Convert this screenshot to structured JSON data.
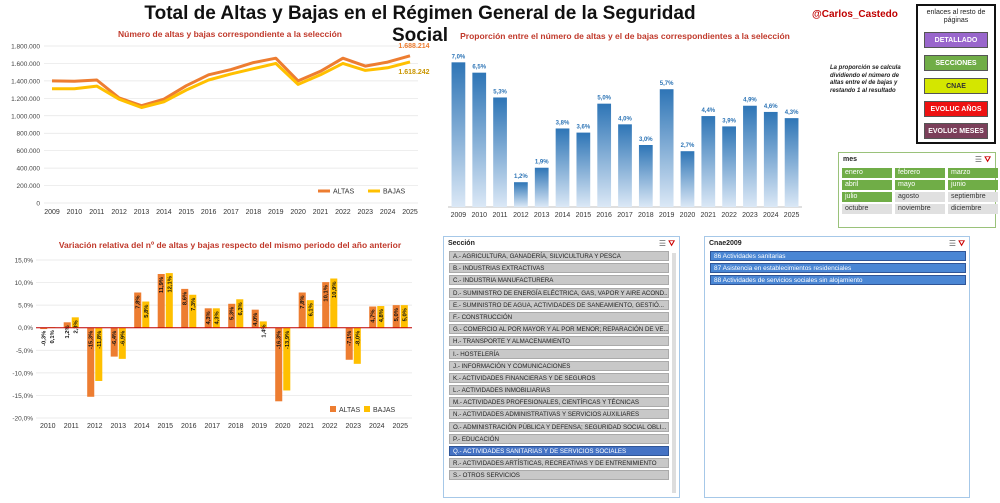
{
  "title": "Total de Altas y Bajas en el Régimen General de la Seguridad Social",
  "handle": "@Carlos_Castedo",
  "links": {
    "header": "enlaces al resto de páginas",
    "buttons": [
      {
        "label": "DETALLADO",
        "color": "#9966cc"
      },
      {
        "label": "SECCIONES",
        "color": "#70ad47"
      },
      {
        "label": "CNAE",
        "color": "#d4e600"
      },
      {
        "label": "EVOLUC AÑOS",
        "color": "#ee1111"
      },
      {
        "label": "EVOLUC MESES",
        "color": "#7b3f5a"
      }
    ]
  },
  "note": "La proporción se calcula dividiendo el número de altas entre el de bajas y restando 1 al resultado",
  "mes_slicer": {
    "header": "mes",
    "months": [
      {
        "label": "enero",
        "selected": true
      },
      {
        "label": "febrero",
        "selected": true
      },
      {
        "label": "marzo",
        "selected": true
      },
      {
        "label": "abril",
        "selected": true
      },
      {
        "label": "mayo",
        "selected": true
      },
      {
        "label": "junio",
        "selected": true
      },
      {
        "label": "julio",
        "selected": true
      },
      {
        "label": "agosto",
        "selected": false
      },
      {
        "label": "septiembre",
        "selected": false
      },
      {
        "label": "octubre",
        "selected": false
      },
      {
        "label": "noviembre",
        "selected": false
      },
      {
        "label": "diciembre",
        "selected": false
      }
    ]
  },
  "seccion_slicer": {
    "header": "Sección",
    "items": [
      {
        "label": "A.- AGRICULTURA, GANADERÍA, SILVICULTURA Y PESCA",
        "selected": false
      },
      {
        "label": "B.- INDUSTRIAS EXTRACTIVAS",
        "selected": false
      },
      {
        "label": "C.- INDUSTRIA MANUFACTURERA",
        "selected": false
      },
      {
        "label": "D.- SUMINISTRO DE ENERGÍA ELÉCTRICA, GAS, VAPOR Y AIRE ACOND...",
        "selected": false
      },
      {
        "label": "E.- SUMINISTRO DE AGUA, ACTIVIDADES DE SANEAMIENTO, GESTIÓ...",
        "selected": false
      },
      {
        "label": "F.- CONSTRUCCIÓN",
        "selected": false
      },
      {
        "label": "G.- COMERCIO AL POR MAYOR Y AL POR MENOR; REPARACIÓN DE VE...",
        "selected": false
      },
      {
        "label": "H.- TRANSPORTE Y ALMACENAMIENTO",
        "selected": false
      },
      {
        "label": "I.- HOSTELERÍA",
        "selected": false
      },
      {
        "label": "J.- INFORMACIÓN Y COMUNICACIONES",
        "selected": false
      },
      {
        "label": "K.- ACTIVIDADES FINANCIERAS Y DE SEGUROS",
        "selected": false
      },
      {
        "label": "L.- ACTIVIDADES INMOBILIARIAS",
        "selected": false
      },
      {
        "label": "M.- ACTIVIDADES PROFESIONALES, CIENTÍFICAS Y TÉCNICAS",
        "selected": false
      },
      {
        "label": "N.- ACTIVIDADES ADMINISTRATIVAS Y SERVICIOS AUXILIARES",
        "selected": false
      },
      {
        "label": "O.- ADMINISTRACIÓN PÚBLICA Y DEFENSA; SEGURIDAD SOCIAL OBLI...",
        "selected": false
      },
      {
        "label": "P.- EDUCACIÓN",
        "selected": false
      },
      {
        "label": "Q.- ACTIVIDADES SANITARIAS Y DE SERVICIOS SOCIALES",
        "selected": true
      },
      {
        "label": "R.- ACTIVIDADES ARTÍSTICAS, RECREATIVAS Y DE ENTRENIMIENTO",
        "selected": false
      },
      {
        "label": "S.- OTROS SERVICIOS",
        "selected": false
      }
    ]
  },
  "cnae_slicer": {
    "header": "Cnae2009",
    "items": [
      {
        "label": "86 Actividades sanitarias"
      },
      {
        "label": "87 Asistencia en establecimientos residenciales"
      },
      {
        "label": "88 Actividades de servicios sociales sin alojamiento"
      }
    ]
  },
  "colors": {
    "altas": "#ed7d31",
    "bajas": "#ffc000",
    "ratio_bar": "#2e75b6",
    "title_red": "#c0392b"
  },
  "chart_data": [
    {
      "type": "line",
      "title": "Número de altas y bajas correspondiente a la selección",
      "x": [
        "2009",
        "2010",
        "2011",
        "2012",
        "2013",
        "2014",
        "2015",
        "2016",
        "2017",
        "2018",
        "2019",
        "2020",
        "2021",
        "2022",
        "2023",
        "2024",
        "2025"
      ],
      "ylim": [
        0,
        1800000
      ],
      "yticks": [
        "0",
        "200.000",
        "400.000",
        "600.000",
        "800.000",
        "1.000.000",
        "1.200.000",
        "1.400.000",
        "1.600.000",
        "1.800.000"
      ],
      "series": [
        {
          "name": "ALTAS",
          "values": [
            1400000,
            1395000,
            1410000,
            1205000,
            1115000,
            1190000,
            1345000,
            1470000,
            1530000,
            1610000,
            1660000,
            1400000,
            1510000,
            1660000,
            1570000,
            1615000,
            1688214
          ]
        },
        {
          "name": "BAJAS",
          "values": [
            1310000,
            1310000,
            1340000,
            1190000,
            1095000,
            1160000,
            1295000,
            1410000,
            1480000,
            1540000,
            1600000,
            1360000,
            1470000,
            1600000,
            1520000,
            1550000,
            1618242
          ]
        }
      ],
      "end_labels": {
        "ALTAS": "1.688.214",
        "BAJAS": "1.618.242"
      },
      "legend": "bottom-right",
      "grid": true
    },
    {
      "type": "bar",
      "title": "Proporción entre el número de altas y el de bajas correspondientes a la selección",
      "categories": [
        "2009",
        "2010",
        "2011",
        "2012",
        "2013",
        "2014",
        "2015",
        "2016",
        "2017",
        "2018",
        "2019",
        "2020",
        "2021",
        "2022",
        "2023",
        "2024",
        "2025"
      ],
      "values": [
        7.0,
        6.5,
        5.3,
        1.2,
        1.9,
        3.8,
        3.6,
        5.0,
        4.0,
        3.0,
        5.7,
        2.7,
        4.4,
        3.9,
        4.9,
        4.6,
        4.3
      ],
      "labels": [
        "7,0%",
        "6,5%",
        "5,3%",
        "1,2%",
        "1,9%",
        "3,8%",
        "3,6%",
        "5,0%",
        "4,0%",
        "3,0%",
        "5,7%",
        "2,7%",
        "4,4%",
        "3,9%",
        "4,9%",
        "4,6%",
        "4,3%"
      ],
      "ylim": [
        0,
        7.5
      ],
      "grid": false
    },
    {
      "type": "bar",
      "title": "Variación relativa del nº de altas y bajas respecto del mismo periodo del año anterior",
      "categories": [
        "2010",
        "2011",
        "2012",
        "2013",
        "2014",
        "2015",
        "2016",
        "2017",
        "2018",
        "2019",
        "2020",
        "2021",
        "2022",
        "2023",
        "2024",
        "2025"
      ],
      "series": [
        {
          "name": "ALTAS",
          "values": [
            -0.3,
            1.2,
            -15.3,
            -6.4,
            7.8,
            11.9,
            8.6,
            4.3,
            5.3,
            4.0,
            -16.3,
            7.8,
            10.1,
            -7.1,
            4.7,
            5.0
          ]
        },
        {
          "name": "BAJAS",
          "values": [
            0.1,
            2.3,
            -11.8,
            -6.9,
            5.8,
            12.1,
            7.3,
            4.3,
            6.3,
            1.4,
            -13.9,
            6.1,
            10.9,
            -8.0,
            4.8,
            5.0
          ]
        }
      ],
      "labels": {
        "ALTAS": [
          "-0,3%",
          "1,2%",
          "-15,3%",
          "-6,4%",
          "7,8%",
          "11,9%",
          "8,6%",
          "4,3%",
          "5,3%",
          "4,0%",
          "-16,3%",
          "7,8%",
          "10,1%",
          "-7,1%",
          "4,7%",
          "5,0%"
        ],
        "BAJAS": [
          "0,1%",
          "2,3%",
          "-11,8%",
          "-6,9%",
          "5,8%",
          "12,1%",
          "7,3%",
          "4,3%",
          "6,3%",
          "1,4%",
          "-13,9%",
          "6,1%",
          "10,9%",
          "-8,0%",
          "4,8%",
          "5,0%"
        ]
      },
      "ylim": [
        -20,
        15
      ],
      "yticks": [
        "-20,0%",
        "-15,0%",
        "-10,0%",
        "-5,0%",
        "0,0%",
        "5,0%",
        "10,0%",
        "15,0%"
      ],
      "legend": "bottom-right",
      "grid": true
    }
  ]
}
